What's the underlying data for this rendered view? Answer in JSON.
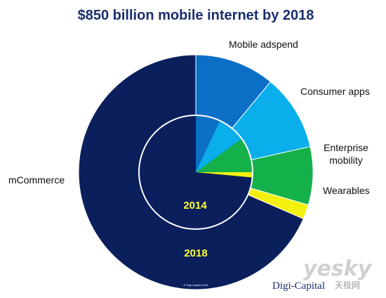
{
  "chart_data": {
    "type": "pie",
    "title": "$850 billion mobile internet by 2018",
    "categories": [
      "Mobile adspend",
      "Consumer apps",
      "Enterprise mobility",
      "Wearables",
      "mCommerce"
    ],
    "series": [
      {
        "name": "2018",
        "ring": "outer",
        "values": [
          11,
          10.5,
          8,
          2,
          68.5
        ]
      },
      {
        "name": "2014",
        "ring": "inner",
        "values": [
          7,
          8,
          10,
          1.5,
          73.5
        ]
      }
    ],
    "colors": [
      "#0b6fc6",
      "#0aaeea",
      "#14b04a",
      "#f4f00e",
      "#0a1f5c"
    ],
    "labels": {
      "mobile_adspend": "Mobile adspend",
      "consumer_apps": "Consumer apps",
      "enterprise_line1": "Enterprise",
      "enterprise_line2": "mobility",
      "wearables": "Wearables",
      "mcommerce": "mCommerce"
    },
    "year_labels": {
      "inner": "2014",
      "outer": "2018"
    },
    "copyright": "© Digi-Capital 2015",
    "brand": "Digi-Capital",
    "watermark": {
      "main": "yesky",
      "sub": "天极网"
    }
  }
}
